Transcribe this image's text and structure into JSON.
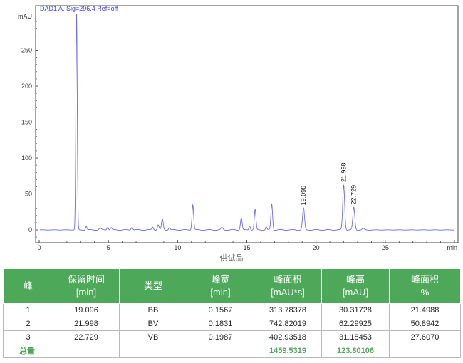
{
  "chart_data": {
    "type": "line",
    "signal_label": "DAD1 A, Sig=296,4 Ref=off",
    "ylabel": "mAU",
    "xlabel": "min",
    "xlim": [
      0,
      30
    ],
    "ylim": [
      -20,
      300
    ],
    "x_ticks": [
      0,
      5,
      10,
      15,
      20,
      25,
      30
    ],
    "y_ticks": [
      0,
      50,
      100,
      150,
      200,
      250
    ],
    "x_tick_labels": [
      "0",
      "5",
      "10",
      "15",
      "20",
      "25",
      "min"
    ],
    "y_tick_labels": [
      "0",
      "50",
      "100",
      "150",
      "200",
      "250",
      "mAU"
    ],
    "series": [
      {
        "color": "#6b6bf0",
        "baseline": 0,
        "peaks": [
          {
            "x": 2.7,
            "y": 300,
            "w": 0.05
          },
          {
            "x": 3.4,
            "y": 5,
            "w": 0.05
          },
          {
            "x": 4.4,
            "y": 2,
            "w": 0.08
          },
          {
            "x": 4.95,
            "y": 4,
            "w": 0.06
          },
          {
            "x": 5.2,
            "y": 3,
            "w": 0.05
          },
          {
            "x": 6.7,
            "y": 4,
            "w": 0.06
          },
          {
            "x": 8.2,
            "y": 4,
            "w": 0.06
          },
          {
            "x": 8.6,
            "y": 7,
            "w": 0.06
          },
          {
            "x": 8.9,
            "y": 15,
            "w": 0.06
          },
          {
            "x": 9.4,
            "y": 3,
            "w": 0.06
          },
          {
            "x": 11.1,
            "y": 35,
            "w": 0.06
          },
          {
            "x": 13.2,
            "y": 3,
            "w": 0.07
          },
          {
            "x": 14.6,
            "y": 17,
            "w": 0.06
          },
          {
            "x": 15.2,
            "y": 6,
            "w": 0.05
          },
          {
            "x": 15.6,
            "y": 28,
            "w": 0.06
          },
          {
            "x": 16.4,
            "y": 4,
            "w": 0.05
          },
          {
            "x": 16.8,
            "y": 36,
            "w": 0.06
          },
          {
            "x": 19.096,
            "y": 30.3,
            "w": 0.07
          },
          {
            "x": 21.998,
            "y": 62.3,
            "w": 0.07
          },
          {
            "x": 22.729,
            "y": 31.2,
            "w": 0.07
          },
          {
            "x": 23.4,
            "y": 2,
            "w": 0.06
          }
        ]
      }
    ],
    "peak_labels": [
      {
        "x": 19.096,
        "y": 30.3,
        "label": "19.096"
      },
      {
        "x": 21.998,
        "y": 62.3,
        "label": "21.998"
      },
      {
        "x": 22.729,
        "y": 31.2,
        "label": "22.729"
      }
    ]
  },
  "caption": "供试品",
  "table": {
    "headers": [
      {
        "line1": "峰",
        "line2": ""
      },
      {
        "line1": "保留时间",
        "line2": "[min]"
      },
      {
        "line1": "类型",
        "line2": ""
      },
      {
        "line1": "峰宽",
        "line2": "[min]"
      },
      {
        "line1": "峰面积",
        "line2": "[mAU*s]"
      },
      {
        "line1": "峰高",
        "line2": "[mAU]"
      },
      {
        "line1": "峰面积",
        "line2": "%"
      }
    ],
    "rows": [
      [
        "1",
        "19.096",
        "BB",
        "0.1567",
        "313.78378",
        "30.31728",
        "21.4988"
      ],
      [
        "2",
        "21.998",
        "BV",
        "0.1831",
        "742.82019",
        "62.29925",
        "50.8942"
      ],
      [
        "3",
        "22.729",
        "VB",
        "0.1987",
        "402.93518",
        "31.18453",
        "27.6070"
      ]
    ],
    "total": [
      "总量",
      "",
      "",
      "",
      "1459.5319",
      "123.80106",
      ""
    ]
  },
  "colors": {
    "trace": "#6b6bf0",
    "signal_label": "#3a3aff",
    "header_bg": "#4ea85a",
    "total_text": "#4ea85a"
  }
}
